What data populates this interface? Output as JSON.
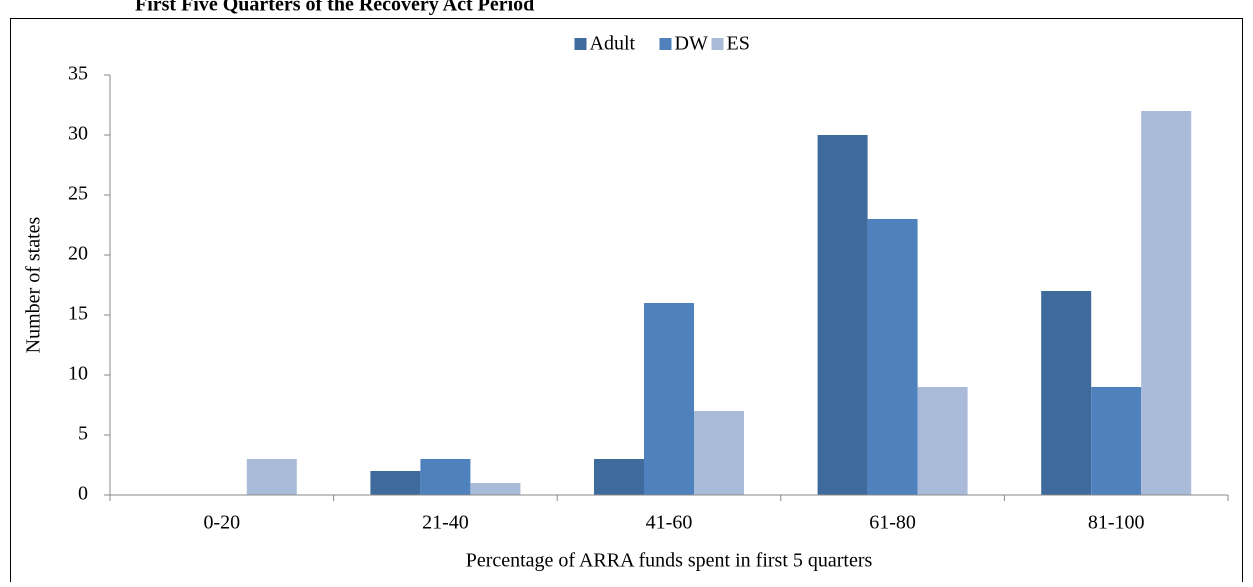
{
  "chart_data": {
    "type": "bar",
    "title": "First Five Quarters of the Recovery Act Period",
    "x_label": "Percentage of ARRA funds spent in first 5 quarters",
    "y_label": "Number of states",
    "categories": [
      "0-20",
      "21-40",
      "41-60",
      "61-80",
      "81-100"
    ],
    "series": [
      {
        "name": "Adult",
        "color": "#3f6a9c",
        "values": [
          0,
          2,
          3,
          30,
          17
        ]
      },
      {
        "name": "DW",
        "color": "#4f81bd",
        "values": [
          0,
          3,
          16,
          23,
          9
        ]
      },
      {
        "name": "ES",
        "color": "#a9bbd9",
        "values": [
          3,
          1,
          7,
          9,
          32
        ]
      }
    ],
    "ylim": [
      0,
      35
    ],
    "yticks": [
      0,
      5,
      10,
      15,
      20,
      25,
      30,
      35
    ],
    "grid": false,
    "legend": "top"
  }
}
